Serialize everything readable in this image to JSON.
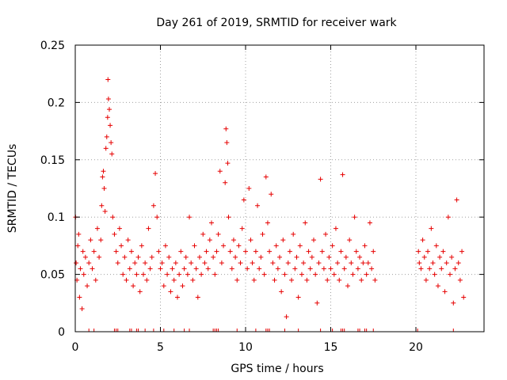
{
  "chart_data": {
    "type": "scatter",
    "title": "Day 261 of 2019, SRMTID for receiver wark",
    "xlabel": "GPS time / hours",
    "ylabel": "SRMTID / TECUs",
    "xlim": [
      0,
      24
    ],
    "ylim": [
      0,
      0.25
    ],
    "grid": true,
    "grid_style": "dotted",
    "marker": "+",
    "point_color": "#e60000",
    "axis_color": "#000000",
    "grid_color": "#a0a0a0",
    "x_ticks": [
      {
        "value": 0,
        "label": "0"
      },
      {
        "value": 5,
        "label": "5"
      },
      {
        "value": 10,
        "label": "10"
      },
      {
        "value": 15,
        "label": "15"
      },
      {
        "value": 20,
        "label": "20"
      }
    ],
    "y_ticks": [
      {
        "value": 0,
        "label": "0"
      },
      {
        "value": 0.05,
        "label": "0.05"
      },
      {
        "value": 0.1,
        "label": "0.1"
      },
      {
        "value": 0.15,
        "label": "0.15"
      },
      {
        "value": 0.2,
        "label": "0.2"
      },
      {
        "value": 0.25,
        "label": "0.25"
      }
    ],
    "data_gaps_hours": [
      [
        17.7,
        20.1
      ]
    ],
    "series": [
      {
        "name": "SRMTID",
        "points": [
          [
            0.02,
            0.1
          ],
          [
            0.05,
            0.06
          ],
          [
            0.1,
            0.045
          ],
          [
            0.15,
            0.075
          ],
          [
            0.2,
            0.085
          ],
          [
            0.25,
            0.03
          ],
          [
            0.3,
            0.055
          ],
          [
            0.4,
            0.02
          ],
          [
            0.45,
            0.07
          ],
          [
            0.5,
            0.05
          ],
          [
            0.6,
            0.065
          ],
          [
            0.7,
            0.04
          ],
          [
            0.8,
            0.06
          ],
          [
            0.9,
            0.08
          ],
          [
            1.0,
            0.055
          ],
          [
            1.1,
            0.07
          ],
          [
            1.2,
            0.045
          ],
          [
            1.3,
            0.09
          ],
          [
            1.4,
            0.065
          ],
          [
            1.5,
            0.08
          ],
          [
            1.55,
            0.11
          ],
          [
            1.6,
            0.135
          ],
          [
            1.65,
            0.14
          ],
          [
            1.7,
            0.125
          ],
          [
            1.75,
            0.105
          ],
          [
            1.8,
            0.16
          ],
          [
            1.85,
            0.17
          ],
          [
            1.9,
            0.187
          ],
          [
            1.92,
            0.22
          ],
          [
            1.95,
            0.203
          ],
          [
            2.0,
            0.194
          ],
          [
            2.05,
            0.18
          ],
          [
            2.1,
            0.165
          ],
          [
            2.15,
            0.155
          ],
          [
            2.2,
            0.1
          ],
          [
            2.3,
            0.085
          ],
          [
            2.4,
            0.07
          ],
          [
            2.5,
            0.06
          ],
          [
            2.6,
            0.09
          ],
          [
            2.7,
            0.075
          ],
          [
            2.8,
            0.05
          ],
          [
            2.9,
            0.065
          ],
          [
            3.0,
            0.045
          ],
          [
            3.1,
            0.08
          ],
          [
            3.2,
            0.055
          ],
          [
            3.3,
            0.07
          ],
          [
            3.4,
            0.04
          ],
          [
            3.5,
            0.06
          ],
          [
            3.6,
            0.05
          ],
          [
            3.7,
            0.065
          ],
          [
            3.8,
            0.035
          ],
          [
            3.9,
            0.075
          ],
          [
            4.0,
            0.05
          ],
          [
            4.1,
            0.06
          ],
          [
            4.2,
            0.045
          ],
          [
            4.3,
            0.09
          ],
          [
            4.4,
            0.055
          ],
          [
            4.5,
            0.065
          ],
          [
            4.6,
            0.11
          ],
          [
            4.7,
            0.138
          ],
          [
            4.8,
            0.1
          ],
          [
            4.9,
            0.07
          ],
          [
            5.0,
            0.055
          ],
          [
            5.1,
            0.06
          ],
          [
            5.2,
            0.04
          ],
          [
            5.3,
            0.075
          ],
          [
            5.4,
            0.05
          ],
          [
            5.5,
            0.065
          ],
          [
            5.6,
            0.035
          ],
          [
            5.7,
            0.055
          ],
          [
            5.8,
            0.045
          ],
          [
            5.9,
            0.06
          ],
          [
            6.0,
            0.03
          ],
          [
            6.1,
            0.05
          ],
          [
            6.2,
            0.07
          ],
          [
            6.3,
            0.04
          ],
          [
            6.4,
            0.055
          ],
          [
            6.5,
            0.065
          ],
          [
            6.6,
            0.05
          ],
          [
            6.7,
            0.1
          ],
          [
            6.8,
            0.06
          ],
          [
            6.9,
            0.045
          ],
          [
            7.0,
            0.075
          ],
          [
            7.1,
            0.055
          ],
          [
            7.2,
            0.03
          ],
          [
            7.3,
            0.065
          ],
          [
            7.4,
            0.05
          ],
          [
            7.5,
            0.085
          ],
          [
            7.6,
            0.06
          ],
          [
            7.7,
            0.07
          ],
          [
            7.8,
            0.055
          ],
          [
            7.9,
            0.08
          ],
          [
            8.0,
            0.095
          ],
          [
            8.1,
            0.065
          ],
          [
            8.2,
            0.05
          ],
          [
            8.3,
            0.07
          ],
          [
            8.4,
            0.085
          ],
          [
            8.5,
            0.14
          ],
          [
            8.6,
            0.06
          ],
          [
            8.7,
            0.075
          ],
          [
            8.8,
            0.13
          ],
          [
            8.85,
            0.177
          ],
          [
            8.9,
            0.165
          ],
          [
            8.95,
            0.147
          ],
          [
            9.0,
            0.1
          ],
          [
            9.1,
            0.07
          ],
          [
            9.2,
            0.055
          ],
          [
            9.3,
            0.08
          ],
          [
            9.4,
            0.065
          ],
          [
            9.5,
            0.045
          ],
          [
            9.6,
            0.075
          ],
          [
            9.7,
            0.06
          ],
          [
            9.8,
            0.09
          ],
          [
            9.9,
            0.115
          ],
          [
            10.0,
            0.07
          ],
          [
            10.1,
            0.055
          ],
          [
            10.2,
            0.125
          ],
          [
            10.3,
            0.08
          ],
          [
            10.4,
            0.06
          ],
          [
            10.5,
            0.045
          ],
          [
            10.6,
            0.07
          ],
          [
            10.7,
            0.11
          ],
          [
            10.8,
            0.055
          ],
          [
            10.9,
            0.065
          ],
          [
            11.0,
            0.085
          ],
          [
            11.1,
            0.05
          ],
          [
            11.2,
            0.135
          ],
          [
            11.3,
            0.095
          ],
          [
            11.4,
            0.07
          ],
          [
            11.5,
            0.12
          ],
          [
            11.6,
            0.06
          ],
          [
            11.7,
            0.045
          ],
          [
            11.8,
            0.075
          ],
          [
            11.9,
            0.055
          ],
          [
            12.0,
            0.065
          ],
          [
            12.1,
            0.035
          ],
          [
            12.2,
            0.08
          ],
          [
            12.3,
            0.05
          ],
          [
            12.4,
            0.013
          ],
          [
            12.5,
            0.06
          ],
          [
            12.6,
            0.07
          ],
          [
            12.7,
            0.045
          ],
          [
            12.8,
            0.085
          ],
          [
            12.9,
            0.055
          ],
          [
            13.0,
            0.065
          ],
          [
            13.1,
            0.03
          ],
          [
            13.2,
            0.075
          ],
          [
            13.3,
            0.05
          ],
          [
            13.4,
            0.06
          ],
          [
            13.5,
            0.095
          ],
          [
            13.6,
            0.045
          ],
          [
            13.7,
            0.07
          ],
          [
            13.8,
            0.055
          ],
          [
            13.9,
            0.065
          ],
          [
            14.0,
            0.08
          ],
          [
            14.1,
            0.05
          ],
          [
            14.2,
            0.025
          ],
          [
            14.3,
            0.06
          ],
          [
            14.4,
            0.133
          ],
          [
            14.5,
            0.07
          ],
          [
            14.6,
            0.055
          ],
          [
            14.7,
            0.085
          ],
          [
            14.8,
            0.045
          ],
          [
            14.9,
            0.065
          ],
          [
            15.0,
            0.055
          ],
          [
            15.1,
            0.075
          ],
          [
            15.2,
            0.05
          ],
          [
            15.3,
            0.09
          ],
          [
            15.4,
            0.06
          ],
          [
            15.5,
            0.045
          ],
          [
            15.6,
            0.07
          ],
          [
            15.7,
            0.137
          ],
          [
            15.8,
            0.055
          ],
          [
            15.9,
            0.065
          ],
          [
            16.0,
            0.04
          ],
          [
            16.1,
            0.08
          ],
          [
            16.2,
            0.06
          ],
          [
            16.3,
            0.05
          ],
          [
            16.4,
            0.1
          ],
          [
            16.5,
            0.07
          ],
          [
            16.6,
            0.055
          ],
          [
            16.7,
            0.065
          ],
          [
            16.8,
            0.045
          ],
          [
            16.9,
            0.06
          ],
          [
            17.0,
            0.075
          ],
          [
            17.1,
            0.05
          ],
          [
            17.2,
            0.06
          ],
          [
            17.3,
            0.095
          ],
          [
            17.4,
            0.055
          ],
          [
            17.5,
            0.07
          ],
          [
            17.6,
            0.045
          ],
          [
            20.15,
            0.07
          ],
          [
            20.2,
            0.06
          ],
          [
            20.3,
            0.055
          ],
          [
            20.4,
            0.08
          ],
          [
            20.5,
            0.065
          ],
          [
            20.6,
            0.045
          ],
          [
            20.7,
            0.07
          ],
          [
            20.8,
            0.055
          ],
          [
            20.9,
            0.09
          ],
          [
            21.0,
            0.06
          ],
          [
            21.1,
            0.05
          ],
          [
            21.2,
            0.075
          ],
          [
            21.3,
            0.04
          ],
          [
            21.4,
            0.065
          ],
          [
            21.5,
            0.055
          ],
          [
            21.6,
            0.07
          ],
          [
            21.7,
            0.035
          ],
          [
            21.8,
            0.06
          ],
          [
            21.9,
            0.1
          ],
          [
            22.0,
            0.05
          ],
          [
            22.1,
            0.065
          ],
          [
            22.2,
            0.025
          ],
          [
            22.3,
            0.055
          ],
          [
            22.4,
            0.115
          ],
          [
            22.5,
            0.06
          ],
          [
            22.6,
            0.045
          ],
          [
            22.7,
            0.07
          ],
          [
            22.8,
            0.03
          ]
        ]
      }
    ],
    "zero_markers_x": [
      0.8,
      1.1,
      2.3,
      2.4,
      2.5,
      3.2,
      3.3,
      3.6,
      3.7,
      4.1,
      4.6,
      5.2,
      5.8,
      6.4,
      6.7,
      8.1,
      8.2,
      8.3,
      8.4,
      9.5,
      10.6,
      11.2,
      11.3,
      11.4,
      12.3,
      13.1,
      14.4,
      15.0,
      15.1,
      15.6,
      15.7,
      15.8,
      16.6,
      16.7,
      17.0,
      17.1,
      17.5,
      20.1,
      22.2
    ]
  }
}
